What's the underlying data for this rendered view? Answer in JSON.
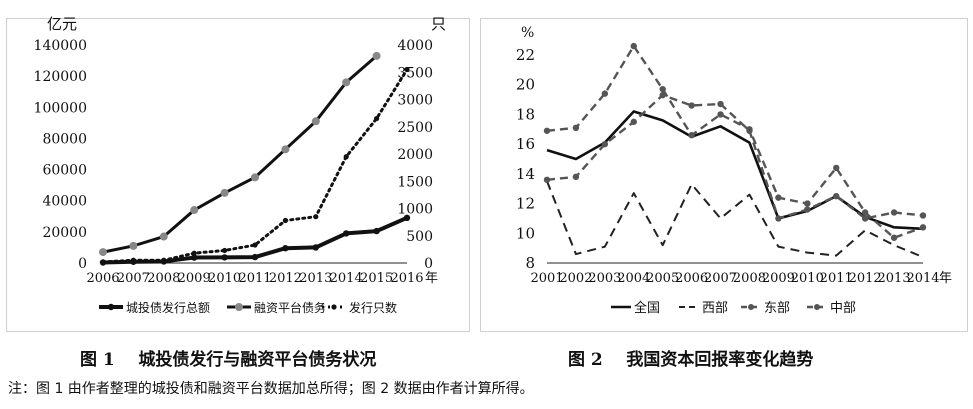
{
  "captions": {
    "fig1": "图 1    城投债发行与融资平台债务状况",
    "fig2": "图 2    我国资本回报率变化趋势",
    "note": "注：图 1 由作者整理的城投债和融资平台数据加总所得；图 2 数据由作者计算所得。"
  },
  "chart_data": [
    {
      "type": "line",
      "title": "城投债发行与融资平台债务状况",
      "ylabel": "亿元",
      "y2label": "只",
      "xunit": "年",
      "x": [
        "2006",
        "2007",
        "2008",
        "2009",
        "2010",
        "2011",
        "2012",
        "2013",
        "2014",
        "2015",
        "2016"
      ],
      "ylim": [
        0,
        140000
      ],
      "yticks": [
        "0",
        "20000",
        "40000",
        "60000",
        "80000",
        "100000",
        "120000",
        "140000"
      ],
      "y2lim": [
        0,
        4000
      ],
      "y2ticks": [
        "0",
        "500",
        "1000",
        "1500",
        "2000",
        "2500",
        "3000",
        "3500",
        "4000"
      ],
      "series": [
        {
          "name": "城投债发行总额",
          "axis": "left",
          "style": "solid",
          "marker": true,
          "values": [
            300,
            800,
            1000,
            3500,
            3600,
            3800,
            9500,
            10000,
            19000,
            20500,
            29000
          ]
        },
        {
          "name": "融资平台债务",
          "axis": "left",
          "style": "solid-gray-marker",
          "marker": true,
          "values": [
            7000,
            11000,
            17000,
            34000,
            45000,
            55000,
            73000,
            91000,
            116000,
            133000,
            null
          ]
        },
        {
          "name": "发行只数",
          "axis": "right",
          "style": "dotted",
          "marker": true,
          "values": [
            20,
            50,
            50,
            180,
            230,
            330,
            780,
            850,
            1950,
            2650,
            3550
          ]
        }
      ],
      "legend": "bottom"
    },
    {
      "type": "line",
      "title": "我国资本回报率变化趋势",
      "ylabel": "%",
      "xunit": "年",
      "x": [
        "2001",
        "2002",
        "2003",
        "2004",
        "2005",
        "2006",
        "2007",
        "2008",
        "2009",
        "2010",
        "2011",
        "2012",
        "2013",
        "2014"
      ],
      "ylim": [
        8,
        22
      ],
      "yticks": [
        "8",
        "10",
        "12",
        "14",
        "16",
        "18",
        "20",
        "22"
      ],
      "series": [
        {
          "name": "全国",
          "style": "solid",
          "marker": false,
          "values": [
            15.6,
            15.0,
            16.1,
            18.2,
            17.6,
            16.5,
            17.2,
            16.1,
            11.0,
            11.5,
            12.5,
            11.1,
            10.4,
            10.3
          ]
        },
        {
          "name": "西部",
          "style": "dashed",
          "marker": false,
          "values": [
            13.5,
            8.6,
            9.1,
            12.7,
            9.2,
            13.3,
            11.0,
            12.6,
            9.1,
            8.7,
            8.5,
            10.2,
            9.2,
            8.4
          ]
        },
        {
          "name": "东部",
          "style": "dashed-marker",
          "marker": true,
          "values": [
            13.6,
            13.8,
            16.0,
            17.5,
            19.3,
            18.6,
            18.7,
            16.9,
            11.0,
            11.6,
            12.5,
            11.0,
            11.4,
            11.2
          ]
        },
        {
          "name": "中部",
          "style": "dashed-marker",
          "marker": true,
          "values": [
            16.9,
            17.1,
            19.4,
            22.6,
            19.7,
            16.6,
            18.0,
            17.0,
            12.4,
            12.0,
            14.4,
            11.4,
            9.7,
            10.4
          ]
        }
      ],
      "legend": "bottom"
    }
  ]
}
